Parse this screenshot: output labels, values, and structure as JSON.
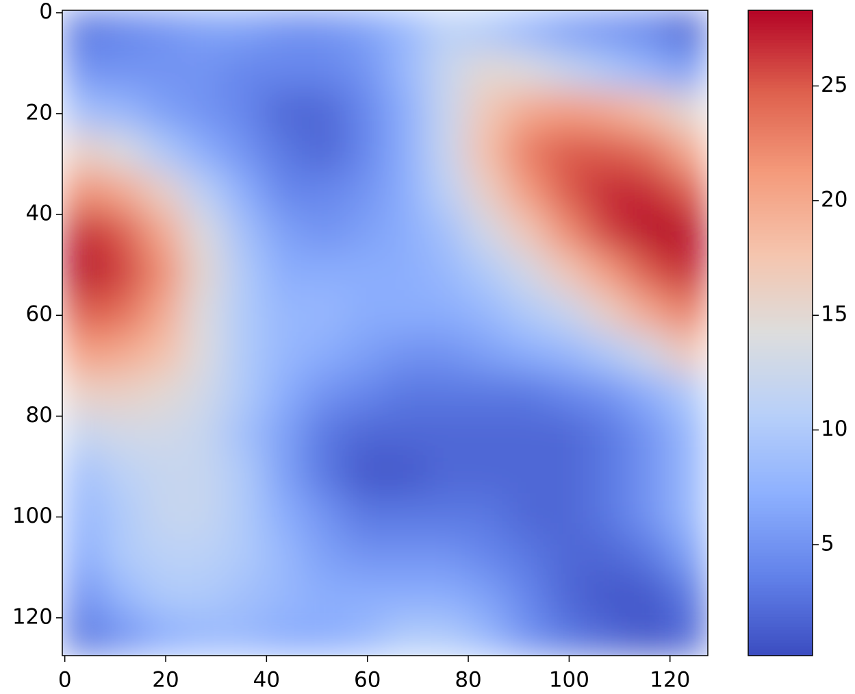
{
  "chart_data": {
    "type": "heatmap",
    "colormap": "coolwarm",
    "x": [
      3.5,
      11.5,
      19.5,
      27.5,
      35.5,
      43.5,
      51.5,
      59.5,
      67.5,
      75.5,
      83.5,
      91.5,
      99.5,
      107.5,
      115.5,
      123.5
    ],
    "y": [
      3.5,
      11.5,
      19.5,
      27.5,
      35.5,
      43.5,
      51.5,
      59.5,
      67.5,
      75.5,
      83.5,
      91.5,
      99.5,
      107.5,
      115.5,
      123.5
    ],
    "values": [
      [
        3,
        4,
        5,
        6,
        6,
        5,
        5,
        6,
        8,
        11,
        10,
        8,
        6,
        5,
        4,
        2
      ],
      [
        5,
        5,
        5,
        5,
        4,
        4,
        4,
        5,
        8,
        12,
        15,
        14,
        12,
        10,
        8,
        6
      ],
      [
        9,
        8,
        6,
        5,
        4,
        2,
        2,
        4,
        7,
        12,
        17,
        20,
        21,
        20,
        18,
        15
      ],
      [
        16,
        14,
        10,
        7,
        5,
        3,
        2,
        4,
        7,
        12,
        18,
        23,
        25,
        25,
        24,
        20
      ],
      [
        22,
        20,
        16,
        11,
        7,
        4,
        4,
        5,
        7,
        11,
        16,
        21,
        25,
        27,
        27,
        25
      ],
      [
        27,
        25,
        20,
        14,
        9,
        6,
        5,
        6,
        7,
        9,
        13,
        17,
        22,
        26,
        28,
        28
      ],
      [
        28,
        26,
        22,
        15,
        10,
        7,
        7,
        7,
        7,
        8,
        10,
        13,
        17,
        21,
        25,
        27
      ],
      [
        25,
        24,
        20,
        14,
        10,
        8,
        8,
        7,
        7,
        7,
        8,
        10,
        12,
        16,
        20,
        23
      ],
      [
        21,
        20,
        18,
        14,
        10,
        8,
        7,
        6,
        5,
        5,
        6,
        7,
        8,
        10,
        13,
        17
      ],
      [
        16,
        16,
        15,
        13,
        10,
        7,
        5,
        4,
        3,
        3,
        3,
        3,
        4,
        5,
        7,
        10
      ],
      [
        12,
        13,
        13,
        12,
        9,
        6,
        3,
        2,
        2,
        2,
        2,
        2,
        2,
        3,
        5,
        8
      ],
      [
        9,
        11,
        12,
        12,
        10,
        6,
        3,
        1,
        1,
        2,
        2,
        2,
        2,
        3,
        5,
        8
      ],
      [
        8,
        10,
        12,
        12,
        10,
        7,
        5,
        3,
        3,
        3,
        3,
        2,
        2,
        3,
        5,
        8
      ],
      [
        7,
        10,
        11,
        11,
        10,
        8,
        6,
        5,
        5,
        5,
        4,
        3,
        2,
        2,
        3,
        6
      ],
      [
        5,
        8,
        10,
        10,
        9,
        8,
        7,
        7,
        7,
        7,
        6,
        4,
        2,
        1,
        1,
        3
      ],
      [
        3,
        5,
        7,
        8,
        8,
        7,
        7,
        8,
        10,
        10,
        8,
        5,
        3,
        2,
        1,
        2
      ]
    ],
    "xlim": [
      -0.5,
      127.5
    ],
    "ylim": [
      127.5,
      -0.5
    ],
    "xticks": [
      0,
      20,
      40,
      60,
      80,
      100,
      120
    ],
    "yticks": [
      0,
      20,
      40,
      60,
      80,
      100,
      120
    ],
    "clim": [
      0.16,
      28.3
    ],
    "cticks": [
      5,
      10,
      15,
      20,
      25
    ]
  }
}
